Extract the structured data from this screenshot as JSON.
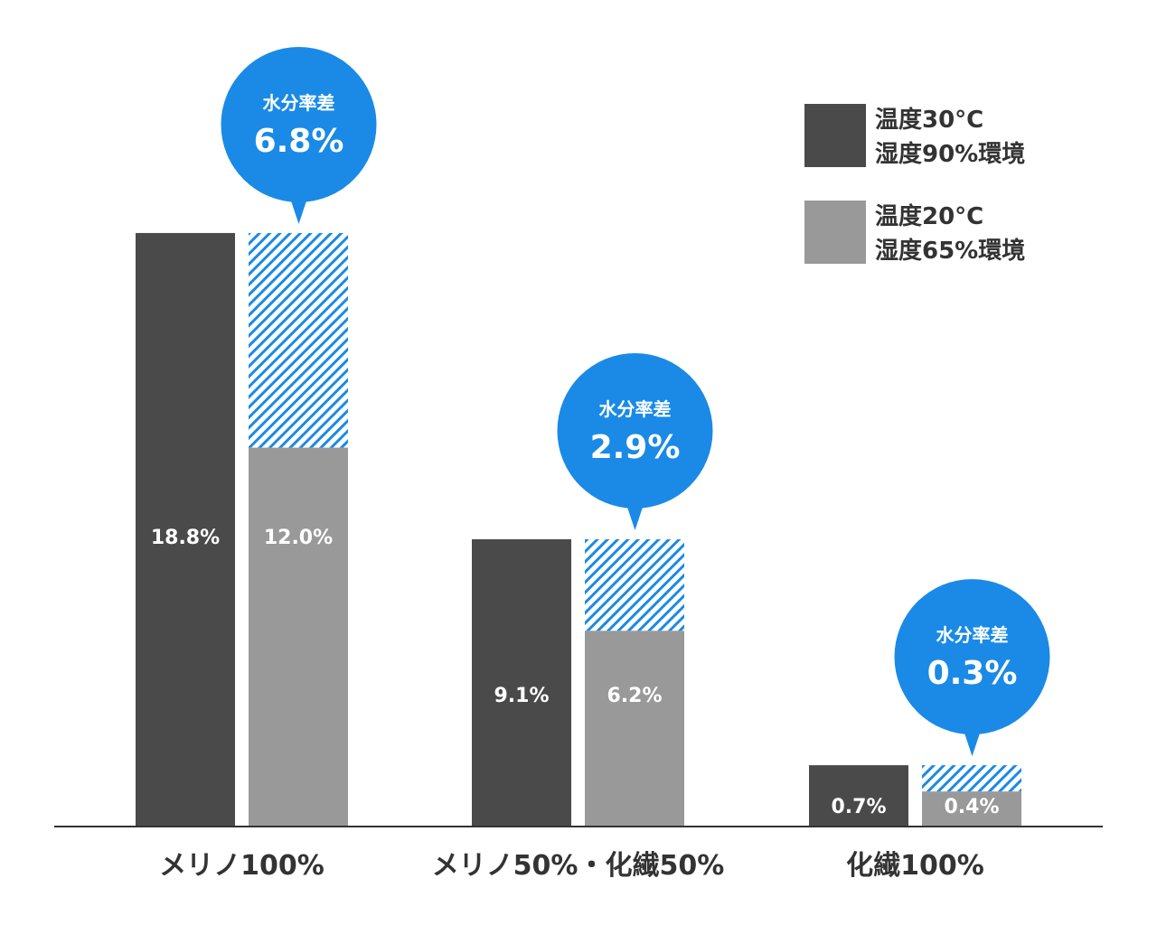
{
  "chart_data": {
    "type": "bar",
    "title": "",
    "xlabel": "",
    "ylabel": "",
    "categories": [
      "メリノ100%",
      "メリノ50%・化繊50%",
      "化繊100%"
    ],
    "series": [
      {
        "name": "温度30°C 湿度90%環境",
        "legend_lines": [
          "温度30°C",
          "湿度90%環境"
        ],
        "color": "#4a4a4a",
        "values": [
          18.8,
          9.1,
          0.7
        ],
        "labels": [
          "18.8%",
          "9.1%",
          "0.7%"
        ]
      },
      {
        "name": "温度20°C 湿度65%環境",
        "legend_lines": [
          "温度20°C",
          "湿度65%環境"
        ],
        "color": "#999999",
        "values": [
          12.0,
          6.2,
          0.4
        ],
        "labels": [
          "12.0%",
          "6.2%",
          "0.4%"
        ]
      }
    ],
    "differences": [
      {
        "label": "水分率差",
        "value": 6.8,
        "text": "6.8%"
      },
      {
        "label": "水分率差",
        "value": 2.9,
        "text": "2.9%"
      },
      {
        "label": "水分率差",
        "value": 0.3,
        "text": "0.3%"
      }
    ],
    "accent_color": "#1a8ae6",
    "legend_position": "top-right",
    "grid": false
  }
}
